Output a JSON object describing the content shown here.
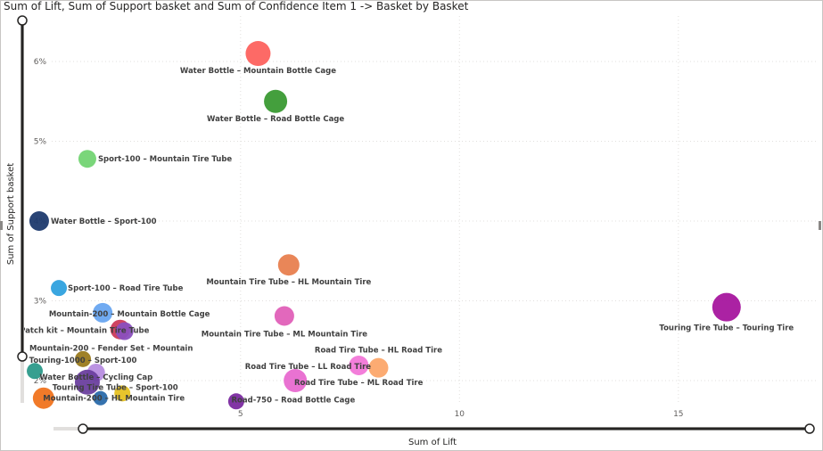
{
  "chart_data": {
    "type": "scatter",
    "title": "Sum of Lift, Sum of Support basket and Sum of Confidence Item 1 -> Basket by Basket",
    "xlabel": "Sum of Lift",
    "ylabel": "Sum of Support basket",
    "x_ticks": [
      5,
      10,
      15
    ],
    "x_tick_labels": [
      "5",
      "10",
      "15"
    ],
    "y_ticks": [
      2,
      3,
      4,
      5,
      6
    ],
    "y_tick_labels": [
      "2%",
      "3%",
      "4%",
      "5%",
      "6%"
    ],
    "xlim": [
      -0.5,
      18.0
    ],
    "ylim": [
      1.7,
      6.5
    ],
    "grid": true,
    "legend": "none",
    "points": [
      {
        "label": "Water Bottle – Mountain Bottle Cage",
        "x": 5.4,
        "y": 6.1,
        "size": 28,
        "color": "#fd625e"
      },
      {
        "label": "Water Bottle – Road Bottle Cage",
        "x": 5.8,
        "y": 5.5,
        "size": 26,
        "color": "#3a9a33"
      },
      {
        "label": "Sport-100 – Mountain Tire Tube",
        "x": 1.5,
        "y": 4.78,
        "size": 20,
        "color": "#73d473"
      },
      {
        "label": "Water Bottle – Sport-100",
        "x": 0.4,
        "y": 4.0,
        "size": 22,
        "color": "#1e3a6e"
      },
      {
        "label": "Mountain Tire Tube – HL Mountain Tire",
        "x": 6.1,
        "y": 3.45,
        "size": 24,
        "color": "#e8804f"
      },
      {
        "label": "Sport-100 – Road Tire Tube",
        "x": 0.85,
        "y": 3.16,
        "size": 18,
        "color": "#2fa1de"
      },
      {
        "label": "Touring Tire Tube – Touring Tire",
        "x": 16.1,
        "y": 2.92,
        "size": 32,
        "color": "#a6169e"
      },
      {
        "label": "Mountain-200 – Mountain Bottle Cage",
        "x": 1.85,
        "y": 2.85,
        "size": 22,
        "color": "#68a5f0"
      },
      {
        "label": "Mountain Tire Tube – ML Mountain Tire",
        "x": 6.0,
        "y": 2.81,
        "size": 22,
        "color": "#e060b8"
      },
      {
        "label": "Patch kit – Mountain Tire Tube",
        "x": 2.25,
        "y": 2.64,
        "size": 22,
        "color": "#cc3a5a"
      },
      {
        "label": "Mountain-200 – Fender Set - Mountain",
        "x": 2.35,
        "y": 2.62,
        "size": 20,
        "color": "#8a4fbe"
      },
      {
        "label": "Touring-1000 – Sport-100",
        "x": 1.4,
        "y": 2.27,
        "size": 18,
        "color": "#9a7a1e"
      },
      {
        "label": "Road Tire Tube – HL Road Tire",
        "x": 8.15,
        "y": 2.16,
        "size": 22,
        "color": "#fca76a"
      },
      {
        "label": "Road Tire Tube – LL Road Tire",
        "x": 7.7,
        "y": 2.19,
        "size": 22,
        "color": "#f277d8"
      },
      {
        "label": "Water Bottle – Cycling Cap",
        "x": 1.7,
        "y": 2.1,
        "size": 20,
        "color": "#b78de0"
      },
      {
        "label": "",
        "x": 0.3,
        "y": 2.12,
        "size": 18,
        "color": "#2c9a8a"
      },
      {
        "label": "Road Tire Tube – ML Road Tire",
        "x": 6.25,
        "y": 2.0,
        "size": 26,
        "color": "#e86ad0"
      },
      {
        "label": "",
        "x": 1.5,
        "y": 1.98,
        "size": 28,
        "color": "#6a3f9e"
      },
      {
        "label": "Touring Tire Tube – Sport-100",
        "x": 2.3,
        "y": 1.84,
        "size": 18,
        "color": "#e6c121"
      },
      {
        "label": "",
        "x": 0.5,
        "y": 1.78,
        "size": 24,
        "color": "#f0731e"
      },
      {
        "label": "Mountain-200 – HL Mountain Tire",
        "x": 1.8,
        "y": 1.78,
        "size": 16,
        "color": "#2a6aaa"
      },
      {
        "label": "Road-750 – Road Bottle Cage",
        "x": 4.9,
        "y": 1.74,
        "size": 18,
        "color": "#7b2aa0"
      }
    ]
  }
}
